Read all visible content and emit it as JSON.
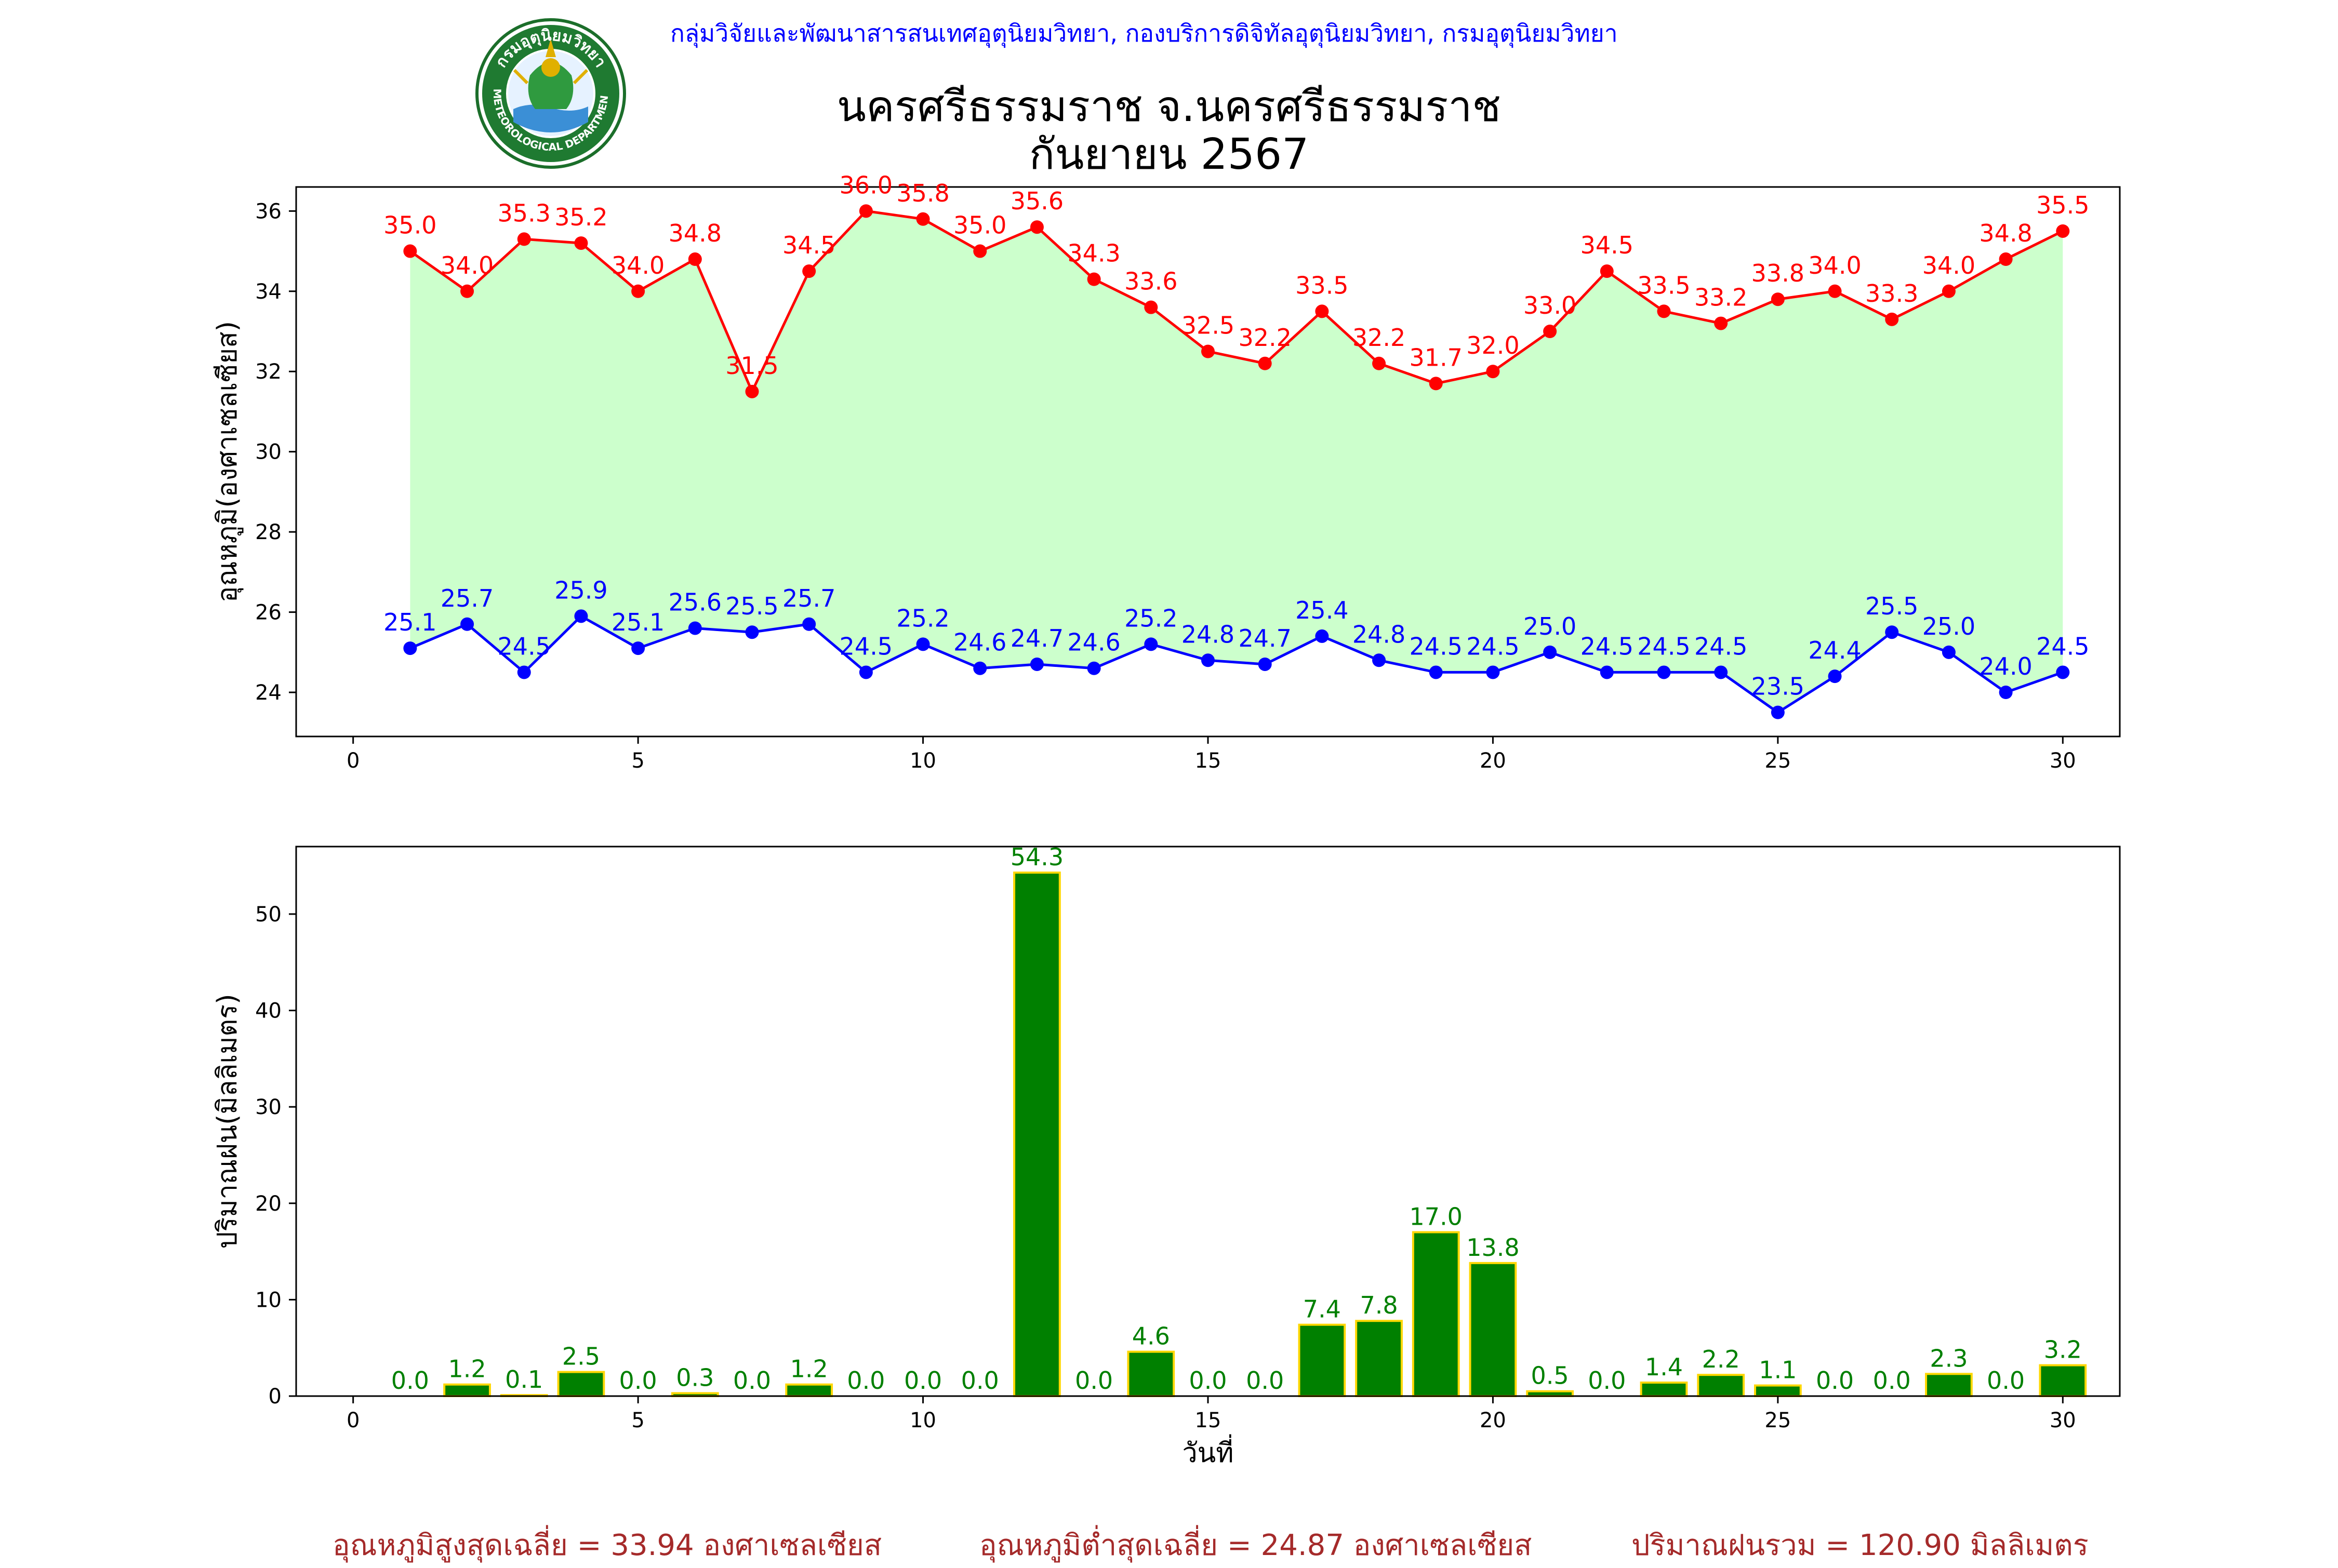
{
  "header": {
    "organization": "กลุ่มวิจัยและพัฒนาสารสนเทศอุตุนิยมวิทยา, กองบริการดิจิทัลอุตุนิยมวิทยา, กรมอุตุนิยมวิทยา",
    "title_line1": "นครศรีธรรมราช จ.นครศรีธรรมราช",
    "title_line2": "กันยายน 2567",
    "logo_text_top": "กรมอุตุนิยมวิทยา",
    "logo_text_bottom": "METEOROLOGICAL DEPARTMENT"
  },
  "chart_data": [
    {
      "type": "line",
      "ylabel": "อุณหภูมิ(องศาเซลเซียส)",
      "xlabel": "",
      "x": [
        1,
        2,
        3,
        4,
        5,
        6,
        7,
        8,
        9,
        10,
        11,
        12,
        13,
        14,
        15,
        16,
        17,
        18,
        19,
        20,
        21,
        22,
        23,
        24,
        25,
        26,
        27,
        28,
        29,
        30
      ],
      "xlim": [
        -1,
        31
      ],
      "ylim": [
        22.9,
        36.6
      ],
      "xticks": [
        0,
        5,
        10,
        15,
        20,
        25,
        30
      ],
      "yticks": [
        24,
        26,
        28,
        30,
        32,
        34,
        36
      ],
      "fill_between": {
        "color": "#ccffcc"
      },
      "series": [
        {
          "name": "",
          "color": "#ff0000",
          "values": [
            35.0,
            34.0,
            35.3,
            35.2,
            34.0,
            34.8,
            31.5,
            34.5,
            36.0,
            35.8,
            35.0,
            35.6,
            34.3,
            33.6,
            32.5,
            32.2,
            33.5,
            32.2,
            31.7,
            32.0,
            33.0,
            34.5,
            33.5,
            33.2,
            33.8,
            34.0,
            33.3,
            34.0,
            34.8,
            35.5
          ]
        },
        {
          "name": "",
          "color": "#0000ff",
          "values": [
            25.1,
            25.7,
            24.5,
            25.9,
            25.1,
            25.6,
            25.5,
            25.7,
            24.5,
            25.2,
            24.6,
            24.7,
            24.6,
            25.2,
            24.8,
            24.7,
            25.4,
            24.8,
            24.5,
            24.5,
            25.0,
            24.5,
            24.5,
            24.5,
            23.5,
            24.4,
            25.5,
            25.0,
            24.0,
            24.5
          ]
        }
      ]
    },
    {
      "type": "bar",
      "ylabel": "ปริมาณฝน(มิลลิเมตร)",
      "xlabel": "วันที่",
      "x": [
        1,
        2,
        3,
        4,
        5,
        6,
        7,
        8,
        9,
        10,
        11,
        12,
        13,
        14,
        15,
        16,
        17,
        18,
        19,
        20,
        21,
        22,
        23,
        24,
        25,
        26,
        27,
        28,
        29,
        30
      ],
      "values": [
        0.0,
        1.2,
        0.1,
        2.5,
        0.0,
        0.3,
        0.0,
        1.2,
        0.0,
        0.0,
        0.0,
        54.3,
        0.0,
        4.6,
        0.0,
        0.0,
        7.4,
        7.8,
        17.0,
        13.8,
        0.5,
        0.0,
        1.4,
        2.2,
        1.1,
        0.0,
        0.0,
        2.3,
        0.0,
        3.2
      ],
      "xlim": [
        -1,
        31
      ],
      "ylim": [
        0,
        57
      ],
      "xticks": [
        0,
        5,
        10,
        15,
        20,
        25,
        30
      ],
      "yticks": [
        0,
        10,
        20,
        30,
        40,
        50
      ],
      "bar_color": "#008000",
      "edge_color": "#ffd700",
      "label_color": "#008000"
    }
  ],
  "footer": {
    "avg_max": "อุณหภูมิสูงสุดเฉลี่ย = 33.94 องศาเซลเซียส",
    "avg_min": "อุณหภูมิต่ำสุดเฉลี่ย = 24.87 องศาเซลเซียส",
    "total_rain": "ปริมาณฝนรวม = 120.90 มิลลิเมตร"
  }
}
